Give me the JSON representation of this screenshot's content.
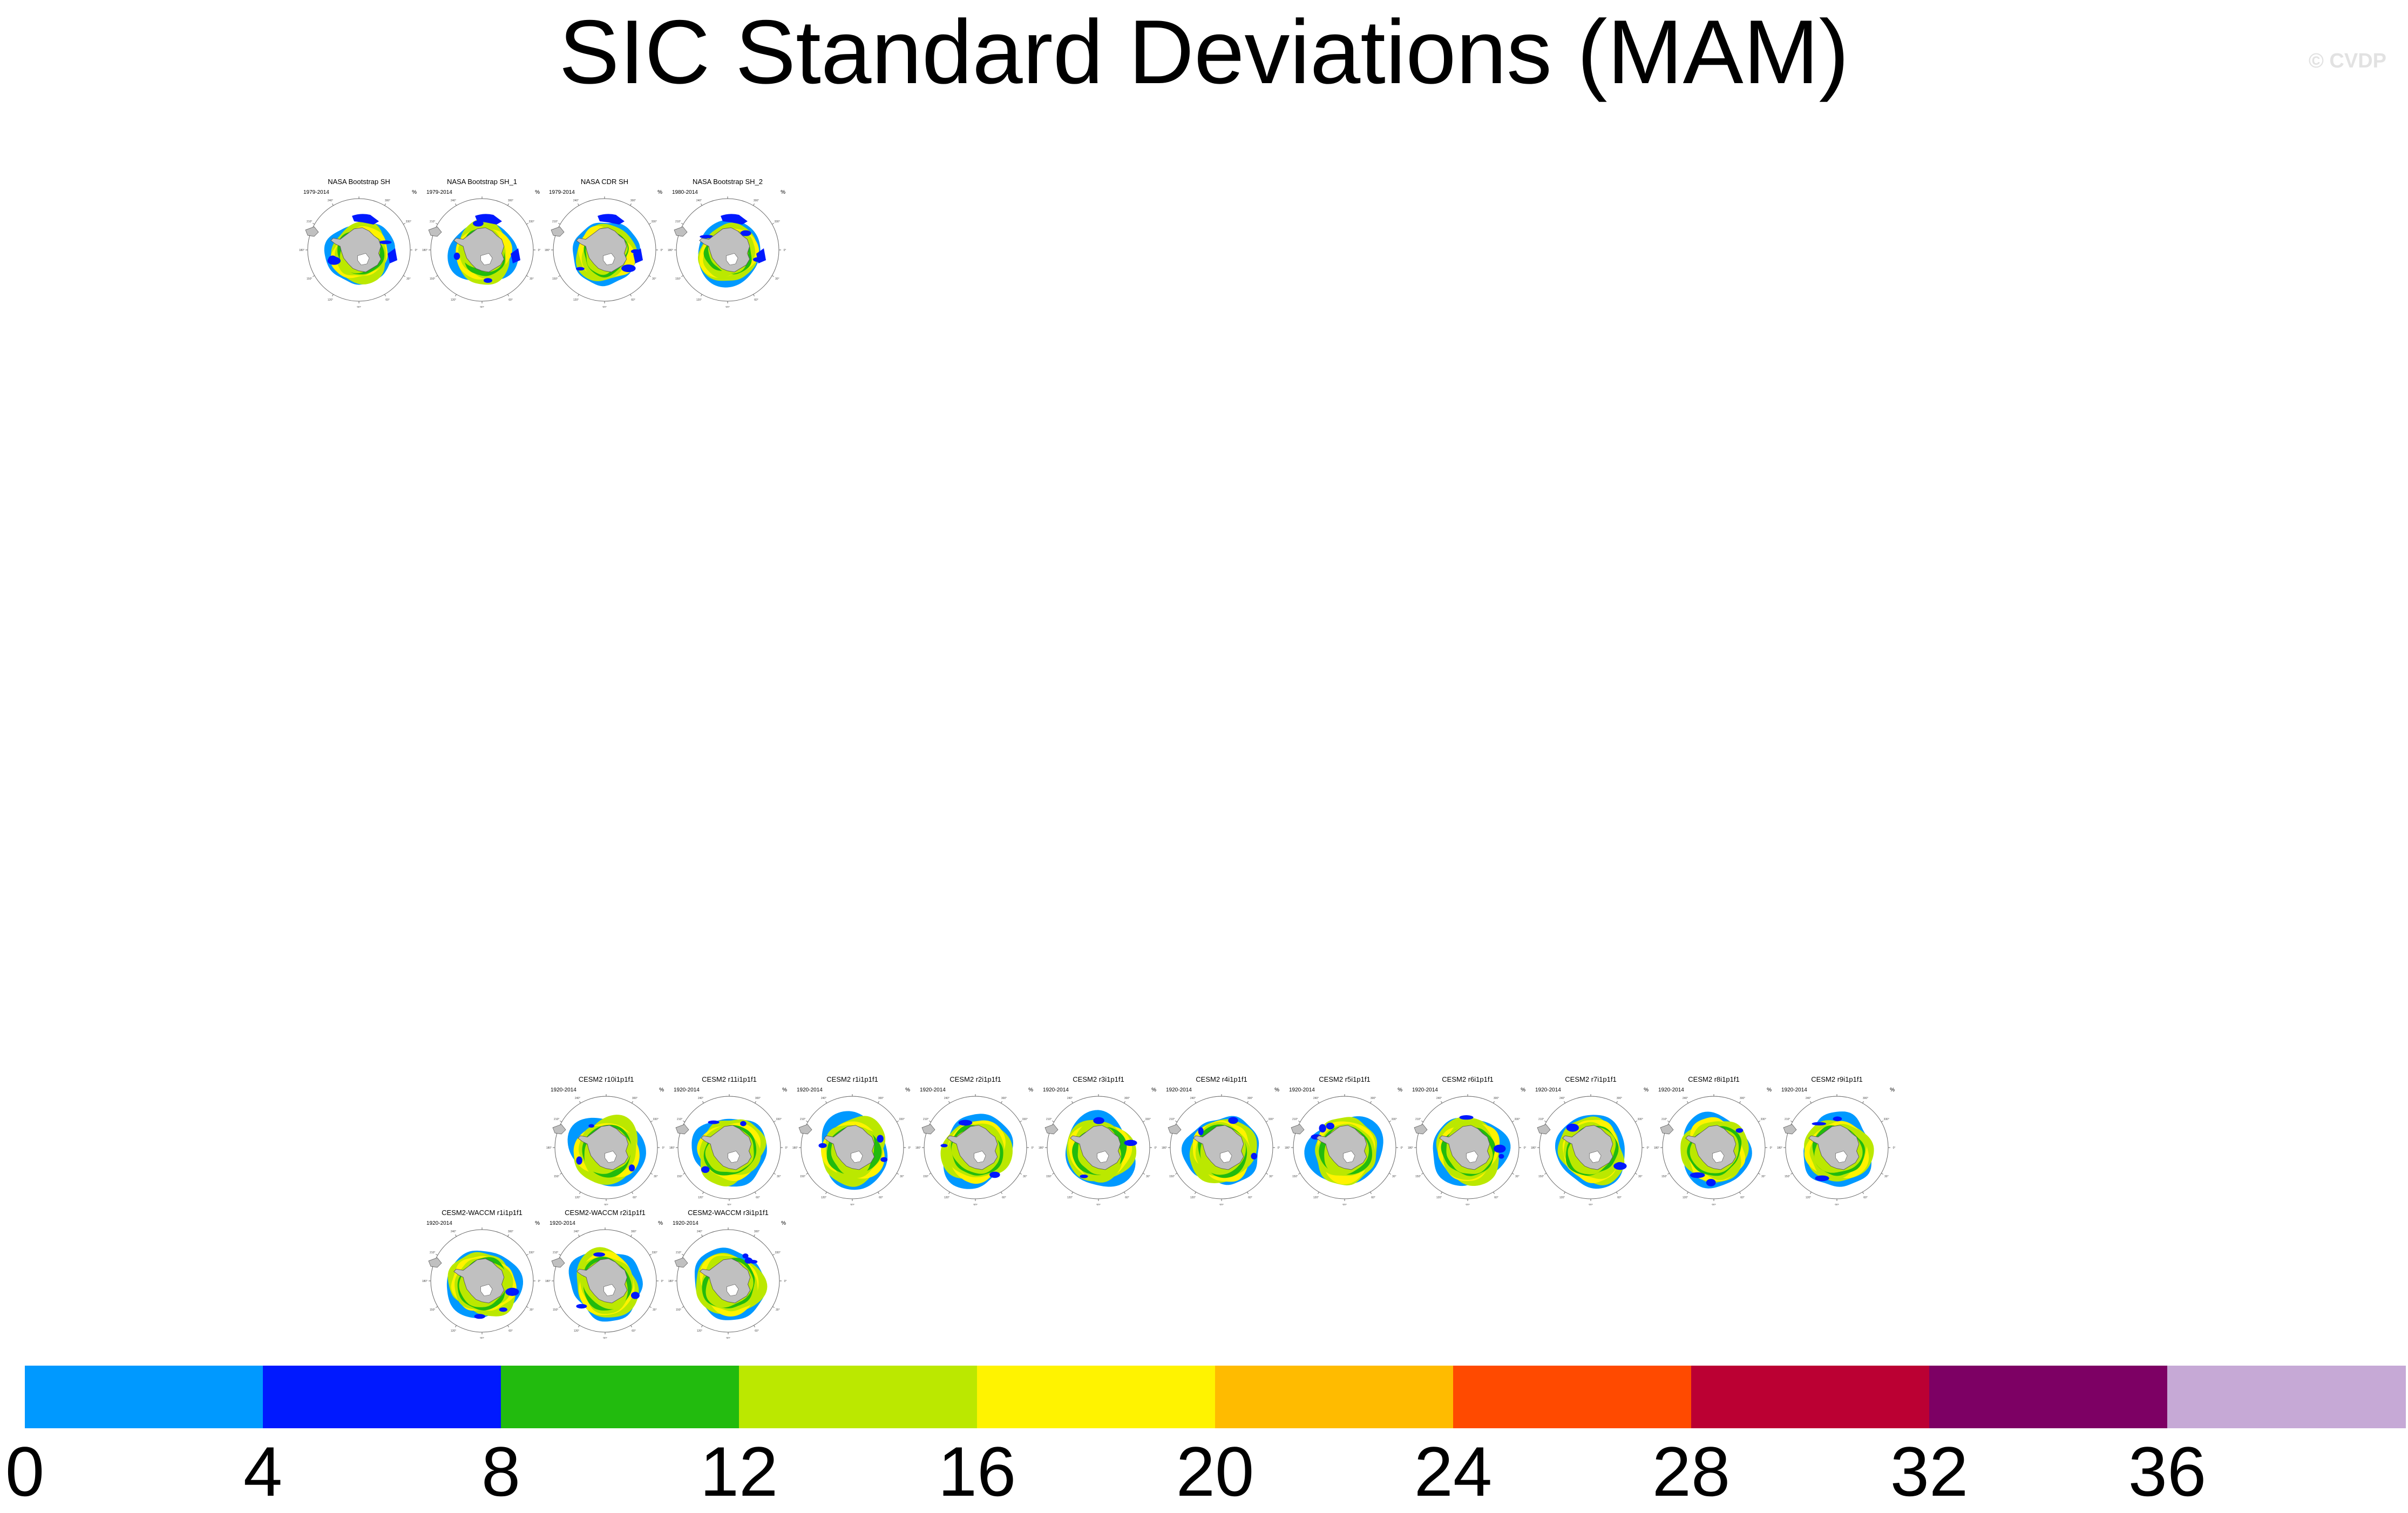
{
  "title": "SIC Standard Deviations (MAM)",
  "copyright": "© CVDP",
  "unit": "%",
  "chart_data": {
    "type": "heatmap",
    "title": "SIC Standard Deviations (MAM)",
    "variable": "SIC",
    "season": "MAM",
    "colorbar": {
      "levels": [
        0,
        4,
        8,
        12,
        16,
        20,
        24,
        28,
        32,
        36
      ],
      "colors": [
        "#0099ff",
        "#0019ff",
        "#22bb0e",
        "#bbe800",
        "#fff300",
        "#ffbb00",
        "#ff4a00",
        "#bb0033",
        "#7d0064",
        "#c6a9d6"
      ]
    },
    "panel_groups": [
      {
        "group": "observations",
        "panels": [
          {
            "title": "NASA Bootstrap SH",
            "period": "1979-2014"
          },
          {
            "title": "NASA Bootstrap SH_1",
            "period": "1979-2014"
          },
          {
            "title": "NASA CDR SH",
            "period": "1979-2014"
          },
          {
            "title": "NASA Bootstrap SH_2",
            "period": "1980-2014"
          }
        ]
      },
      {
        "group": "cesm2",
        "panels": [
          {
            "title": "CESM2 r10i1p1f1",
            "period": "1920-2014"
          },
          {
            "title": "CESM2 r11i1p1f1",
            "period": "1920-2014"
          },
          {
            "title": "CESM2 r1i1p1f1",
            "period": "1920-2014"
          },
          {
            "title": "CESM2 r2i1p1f1",
            "period": "1920-2014"
          },
          {
            "title": "CESM2 r3i1p1f1",
            "period": "1920-2014"
          },
          {
            "title": "CESM2 r4i1p1f1",
            "period": "1920-2014"
          },
          {
            "title": "CESM2 r5i1p1f1",
            "period": "1920-2014"
          },
          {
            "title": "CESM2 r6i1p1f1",
            "period": "1920-2014"
          },
          {
            "title": "CESM2 r7i1p1f1",
            "period": "1920-2014"
          },
          {
            "title": "CESM2 r8i1p1f1",
            "period": "1920-2014"
          },
          {
            "title": "CESM2 r9i1p1f1",
            "period": "1920-2014"
          }
        ]
      },
      {
        "group": "cesm2-waccm",
        "panels": [
          {
            "title": "CESM2-WACCM r1i1p1f1",
            "period": "1920-2014"
          },
          {
            "title": "CESM2-WACCM r2i1p1f1",
            "period": "1920-2014"
          },
          {
            "title": "CESM2-WACCM r3i1p1f1",
            "period": "1920-2014"
          }
        ]
      }
    ]
  }
}
